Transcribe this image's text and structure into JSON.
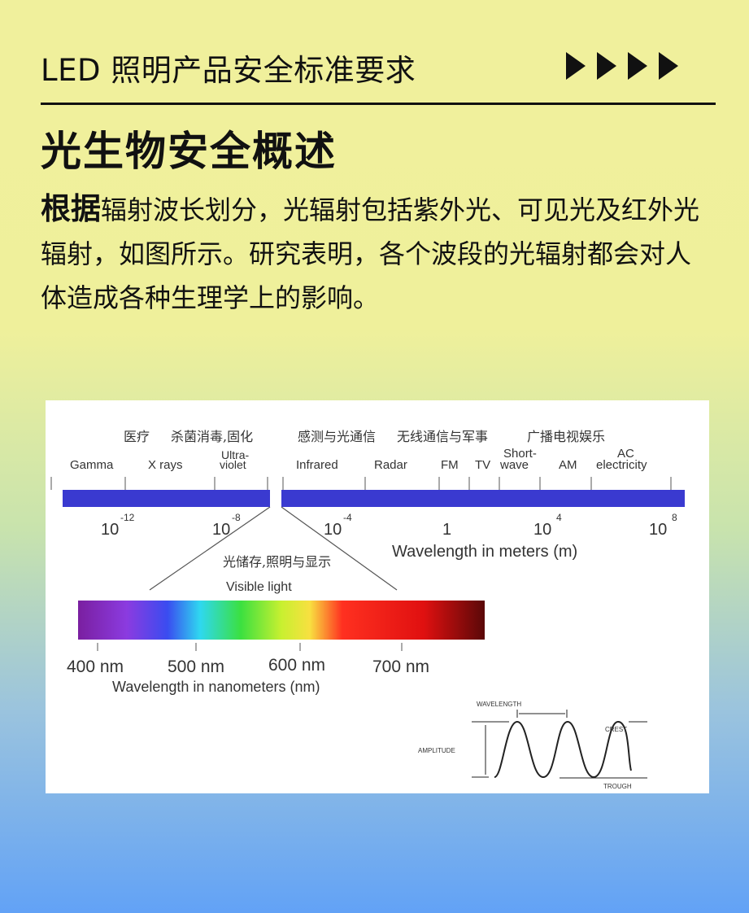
{
  "header": {
    "title": "LED 照明产品安全标准要求",
    "arrow_icons": [
      "play-icon",
      "play-icon",
      "play-icon",
      "play-icon"
    ]
  },
  "section_title": "光生物安全概述",
  "paragraph": {
    "lead": "根据",
    "text": "辐射波长划分，光辐射包括紫外光、可见光及红外光辐射，如图所示。研究表明，各个波段的光辐射都会对人体造成各种生理学上的影响。"
  },
  "figure": {
    "applications": [
      "医疗",
      "杀菌消毒,固化",
      "感测与光通信",
      "无线通信与军事",
      "广播电视娱乐"
    ],
    "bands": [
      "Gamma",
      "X rays",
      "Ultra-",
      "violet",
      "Infrared",
      "Radar",
      "FM",
      "TV",
      "Short-",
      "wave",
      "AM",
      "AC",
      "electricity"
    ],
    "tick_base": [
      "10",
      "10",
      "10",
      "1",
      "10",
      "10"
    ],
    "tick_exp": [
      "-12",
      "-8",
      "-4",
      "",
      "4",
      "8"
    ],
    "meters_label": "Wavelength in meters (m)",
    "visible_app": "光储存,照明与显示",
    "visible_label": "Visible light",
    "nm_ticks": [
      "400 nm",
      "500 nm",
      "600 nm",
      "700 nm"
    ],
    "nm_label": "Wavelength in nanometers (nm)",
    "wave": {
      "wavelength": "WAVELENGTH",
      "amplitude": "AMPLITUDE",
      "crest": "CREST",
      "trough": "TROUGH"
    },
    "bar_color": "#3a3ad0"
  }
}
